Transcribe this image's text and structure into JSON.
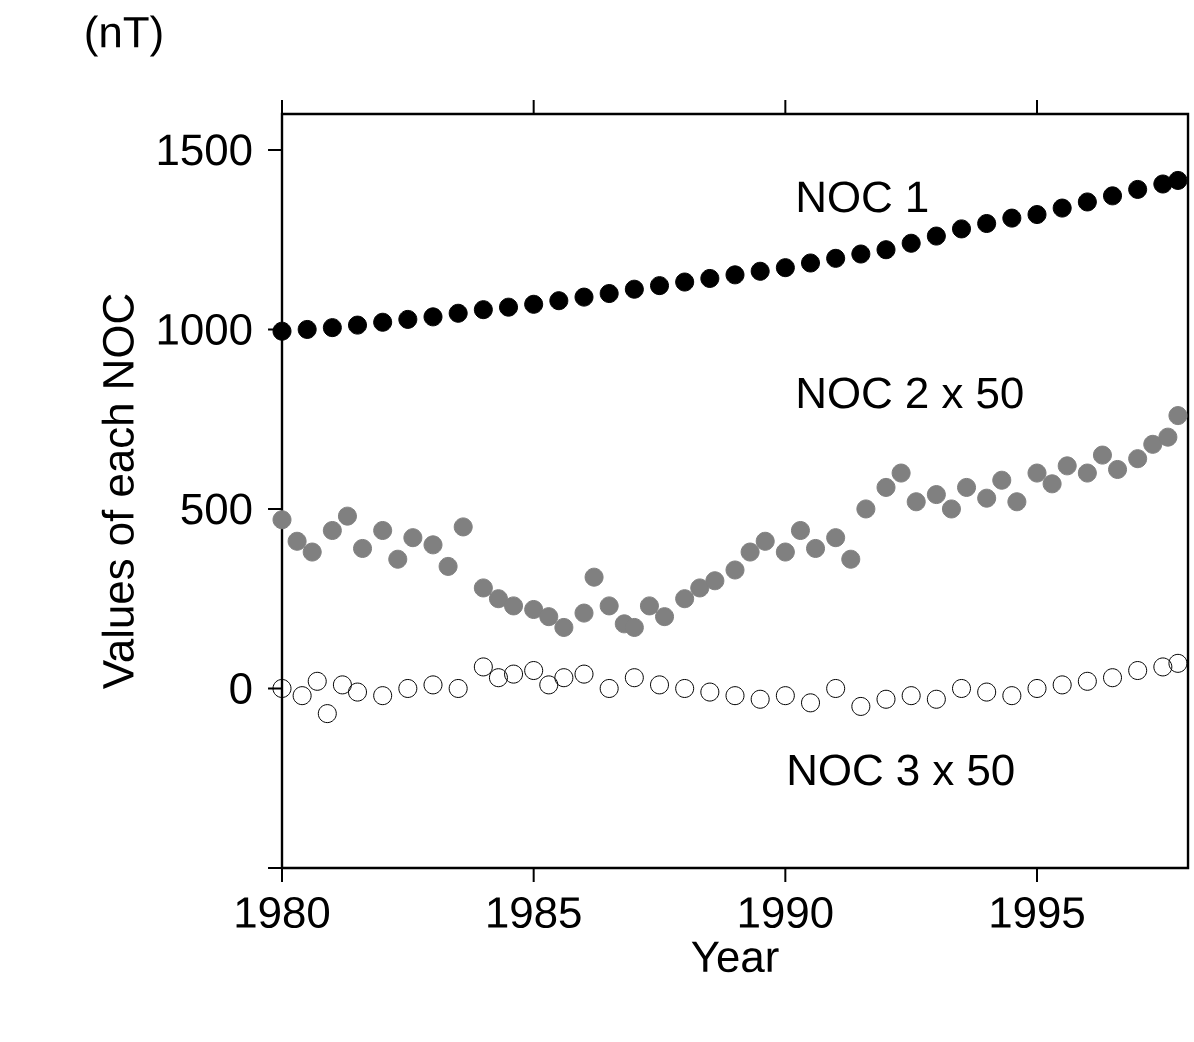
{
  "chart_data": {
    "type": "scatter",
    "xlabel": "Year",
    "ylabel": "Values of each NOC",
    "annotations": [
      "(nT)"
    ],
    "xlim": [
      1980,
      1998
    ],
    "ylim": [
      -500,
      1600
    ],
    "xticks": [
      1980,
      1985,
      1990,
      1995
    ],
    "yticks": [
      {
        "value": -500,
        "label": null
      },
      0,
      500,
      1000,
      1500
    ],
    "grid": false,
    "legend": false,
    "series": [
      {
        "name": "NOC 1",
        "color": "#000000",
        "marker": "circle",
        "x": [
          1980,
          1980.5,
          1981,
          1981.5,
          1982,
          1982.5,
          1983,
          1983.5,
          1984,
          1984.5,
          1985,
          1985.5,
          1986,
          1986.5,
          1987,
          1987.5,
          1988,
          1988.5,
          1989,
          1989.5,
          1990,
          1990.5,
          1991,
          1991.5,
          1992,
          1992.5,
          1993,
          1993.5,
          1994,
          1994.5,
          1995,
          1995.5,
          1996,
          1996.5,
          1997,
          1997.5,
          1997.8
        ],
        "values": [
          995,
          1000,
          1005,
          1012,
          1020,
          1028,
          1035,
          1045,
          1055,
          1062,
          1070,
          1080,
          1090,
          1100,
          1112,
          1122,
          1132,
          1142,
          1152,
          1162,
          1172,
          1185,
          1198,
          1210,
          1222,
          1240,
          1260,
          1280,
          1295,
          1310,
          1320,
          1338,
          1355,
          1372,
          1390,
          1405,
          1415
        ]
      },
      {
        "name": "NOC 2 x 50",
        "color": "#808080",
        "marker": "circle",
        "x": [
          1980,
          1980.3,
          1980.6,
          1981,
          1981.3,
          1981.6,
          1982,
          1982.3,
          1982.6,
          1983,
          1983.3,
          1983.6,
          1984,
          1984.3,
          1984.6,
          1985,
          1985.3,
          1985.6,
          1986,
          1986.2,
          1986.5,
          1986.8,
          1987,
          1987.3,
          1987.6,
          1988,
          1988.3,
          1988.6,
          1989,
          1989.3,
          1989.6,
          1990,
          1990.3,
          1990.6,
          1991,
          1991.3,
          1991.6,
          1992,
          1992.3,
          1992.6,
          1993,
          1993.3,
          1993.6,
          1994,
          1994.3,
          1994.6,
          1995,
          1995.3,
          1995.6,
          1996,
          1996.3,
          1996.6,
          1997,
          1997.3,
          1997.6,
          1997.8
        ],
        "values": [
          470,
          410,
          380,
          440,
          480,
          390,
          440,
          360,
          420,
          400,
          340,
          450,
          280,
          250,
          230,
          220,
          200,
          170,
          210,
          310,
          230,
          180,
          170,
          230,
          200,
          250,
          280,
          300,
          330,
          380,
          410,
          380,
          440,
          390,
          420,
          360,
          500,
          560,
          600,
          520,
          540,
          500,
          560,
          530,
          580,
          520,
          600,
          570,
          620,
          600,
          650,
          610,
          640,
          680,
          700,
          760
        ]
      },
      {
        "name": "NOC 3 x 50",
        "color": "#000000",
        "marker": "open circle",
        "x": [
          1980,
          1980.4,
          1980.7,
          1980.9,
          1981.2,
          1981.5,
          1982,
          1982.5,
          1983,
          1983.5,
          1984,
          1984.3,
          1984.6,
          1985,
          1985.3,
          1985.6,
          1986,
          1986.5,
          1987,
          1987.5,
          1988,
          1988.5,
          1989,
          1989.5,
          1990,
          1990.5,
          1991,
          1991.5,
          1992,
          1992.5,
          1993,
          1993.5,
          1994,
          1994.5,
          1995,
          1995.5,
          1996,
          1996.5,
          1997,
          1997.5,
          1997.8
        ],
        "values": [
          0,
          -20,
          20,
          -70,
          10,
          -10,
          -20,
          0,
          10,
          0,
          60,
          30,
          40,
          50,
          10,
          30,
          40,
          0,
          30,
          10,
          0,
          -10,
          -20,
          -30,
          -20,
          -40,
          0,
          -50,
          -30,
          -20,
          -30,
          0,
          -10,
          -20,
          0,
          10,
          20,
          30,
          50,
          60,
          70
        ]
      }
    ]
  }
}
